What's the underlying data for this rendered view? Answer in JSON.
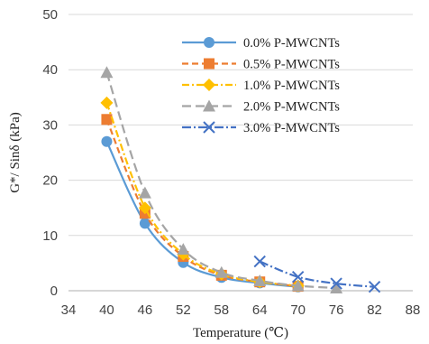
{
  "chart_data": {
    "type": "line",
    "title": "",
    "xlabel": "Temperature (℃)",
    "ylabel": "G*/ Sinδ (kPa)",
    "xlim": [
      34,
      88
    ],
    "ylim": [
      0,
      50
    ],
    "xticks": [
      "34",
      "40",
      "46",
      "52",
      "58",
      "64",
      "70",
      "76",
      "82",
      "88"
    ],
    "yticks": [
      "0",
      "10",
      "20",
      "30",
      "40",
      "50"
    ],
    "grid": true,
    "legend_position": "top-right",
    "series": [
      {
        "name": "0.0% P-MWCNTs",
        "color": "#5b9bd5",
        "dash": "",
        "marker": "circle",
        "x": [
          40,
          46,
          52,
          58,
          64,
          70
        ],
        "y": [
          27,
          12.2,
          5.1,
          2.4,
          1.4,
          0.7
        ]
      },
      {
        "name": "0.5% P-MWCNTs",
        "color": "#ed7d31",
        "dash": "7,4",
        "marker": "square",
        "x": [
          40,
          46,
          52,
          58,
          64,
          70
        ],
        "y": [
          31,
          14,
          6.2,
          2.8,
          1.6,
          0.8
        ]
      },
      {
        "name": "1.0% P-MWCNTs",
        "color": "#ffc000",
        "dash": "8,3,2,3",
        "marker": "diamond",
        "x": [
          40,
          46,
          52,
          58,
          64,
          70
        ],
        "y": [
          34,
          15,
          6.6,
          3,
          1.6,
          0.9
        ]
      },
      {
        "name": "2.0% P-MWCNTs",
        "color": "#a5a5a5",
        "dash": "10,5",
        "marker": "triangle",
        "x": [
          40,
          46,
          52,
          58,
          64,
          70,
          76
        ],
        "y": [
          39.5,
          17.7,
          7.5,
          3.3,
          1.8,
          0.9,
          0.5
        ]
      },
      {
        "name": "3.0% P-MWCNTs",
        "color": "#4472c4",
        "dash": "10,3,2,3",
        "marker": "x",
        "x": [
          64,
          70,
          76,
          82
        ],
        "y": [
          5.3,
          2.5,
          1.3,
          0.7
        ]
      }
    ]
  }
}
